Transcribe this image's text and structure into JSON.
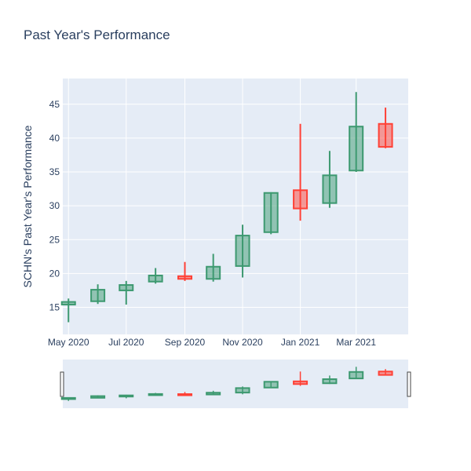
{
  "chart_data": {
    "type": "candlestick",
    "title": "Past Year's Performance",
    "xlabel": "",
    "ylabel": "SCHN's Past Year's Performance",
    "x_tick_labels": [
      "May 2020",
      "Jul 2020",
      "Sep 2020",
      "Nov 2020",
      "Jan 2021",
      "Mar 2021"
    ],
    "y_ticks": [
      15,
      20,
      25,
      30,
      35,
      40,
      45
    ],
    "ylim": [
      11,
      48.8
    ],
    "xlim": [
      "2020-04-25",
      "2021-04-25"
    ],
    "range_slider": true,
    "grid": true,
    "increasing_color": "#3d9970",
    "decreasing_color": "#ff4136",
    "background_color": "#e5ecf6",
    "candles": [
      {
        "date": "2020-05-01",
        "open": 15.4,
        "high": 16.3,
        "low": 12.8,
        "close": 15.8
      },
      {
        "date": "2020-06-01",
        "open": 15.9,
        "high": 18.4,
        "low": 15.5,
        "close": 17.6
      },
      {
        "date": "2020-07-01",
        "open": 17.5,
        "high": 18.9,
        "low": 15.4,
        "close": 18.3
      },
      {
        "date": "2020-08-01",
        "open": 18.8,
        "high": 20.8,
        "low": 18.5,
        "close": 19.7
      },
      {
        "date": "2020-09-01",
        "open": 19.6,
        "high": 21.7,
        "low": 18.9,
        "close": 19.2
      },
      {
        "date": "2020-10-01",
        "open": 19.2,
        "high": 22.9,
        "low": 18.8,
        "close": 21.0
      },
      {
        "date": "2020-11-01",
        "open": 21.1,
        "high": 27.2,
        "low": 19.4,
        "close": 25.6
      },
      {
        "date": "2020-12-01",
        "open": 26.1,
        "high": 32.0,
        "low": 25.8,
        "close": 31.9
      },
      {
        "date": "2021-01-01",
        "open": 32.3,
        "high": 42.1,
        "low": 27.8,
        "close": 29.6
      },
      {
        "date": "2021-02-01",
        "open": 30.4,
        "high": 38.1,
        "low": 29.7,
        "close": 34.5
      },
      {
        "date": "2021-03-01",
        "open": 35.2,
        "high": 46.8,
        "low": 35.0,
        "close": 41.7
      },
      {
        "date": "2021-04-01",
        "open": 42.1,
        "high": 44.5,
        "low": 38.5,
        "close": 38.7
      }
    ]
  }
}
